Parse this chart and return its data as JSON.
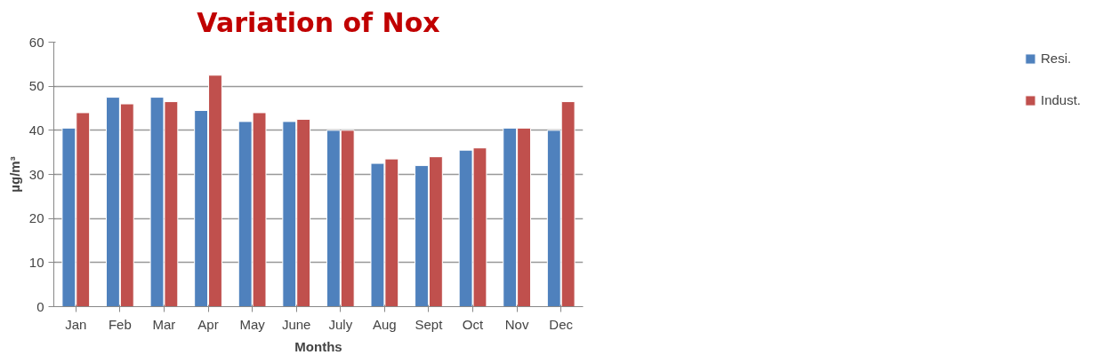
{
  "chart_data": {
    "type": "bar",
    "title": "Variation of Nox",
    "xlabel": "Months",
    "ylabel": "µg/m³",
    "categories": [
      "Jan",
      "Feb",
      "Mar",
      "Apr",
      "May",
      "June",
      "July",
      "Aug",
      "Sept",
      "Oct",
      "Nov",
      "Dec"
    ],
    "series": [
      {
        "name": "Resi.",
        "color": "#4f81bd",
        "values": [
          40.5,
          47.5,
          47.5,
          44.5,
          42,
          42,
          40,
          32.5,
          32,
          35.5,
          40.5,
          40
        ]
      },
      {
        "name": "Indust.",
        "color": "#c0504d",
        "values": [
          44,
          46,
          46.5,
          52.5,
          44,
          42.5,
          40,
          33.5,
          34,
          36,
          40.5,
          46.5
        ]
      }
    ],
    "ylim": [
      0,
      60
    ],
    "yticks": [
      0,
      10,
      20,
      30,
      40,
      50,
      60
    ],
    "grid": "y",
    "legend": "right"
  }
}
